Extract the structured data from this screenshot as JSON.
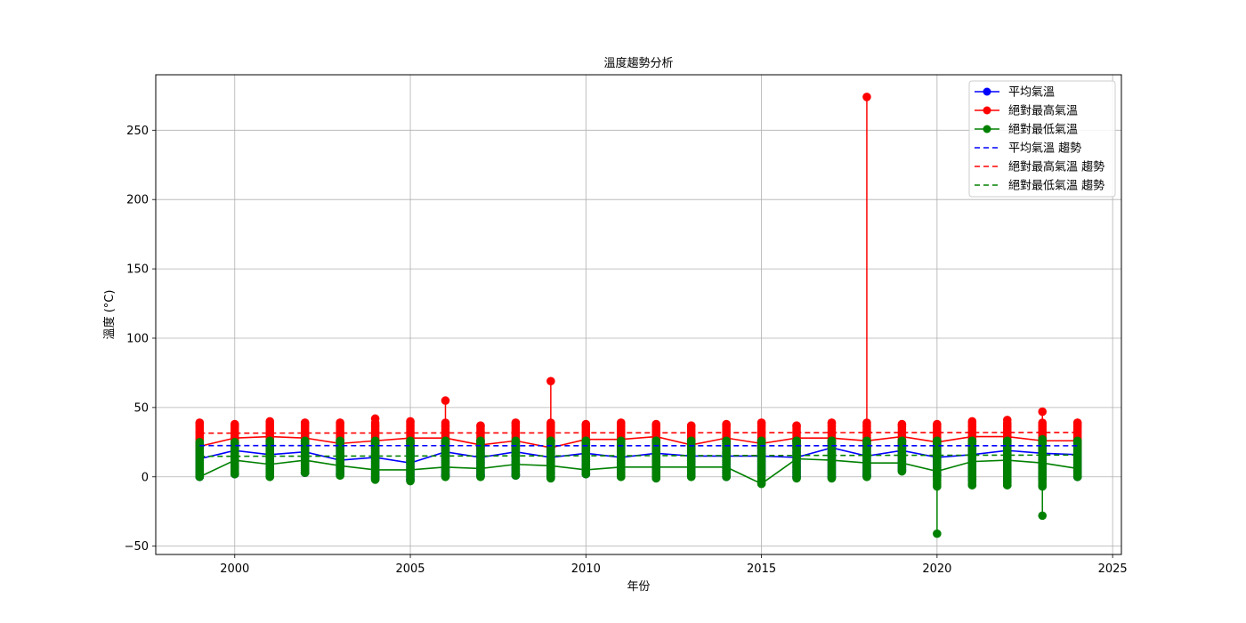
{
  "chart_data": {
    "type": "line",
    "title": "溫度趨勢分析",
    "xlabel": "年份",
    "ylabel": "溫度 (°C)",
    "xlim": [
      1997.75,
      2025.25
    ],
    "ylim": [
      -56,
      290
    ],
    "xticks": [
      2000,
      2005,
      2010,
      2015,
      2020,
      2025
    ],
    "yticks": [
      -50,
      0,
      50,
      100,
      150,
      200,
      250
    ],
    "grid": true,
    "legend_position": "top-right",
    "x": [
      1999,
      2000,
      2001,
      2002,
      2003,
      2004,
      2005,
      2006,
      2007,
      2008,
      2009,
      2010,
      2011,
      2012,
      2013,
      2014,
      2015,
      2016,
      2017,
      2018,
      2019,
      2020,
      2021,
      2022,
      2023,
      2024
    ],
    "series": [
      {
        "name": "平均氣溫",
        "color": "#0000ff",
        "style": "solid",
        "marker": true,
        "values": [
          13,
          19,
          16,
          18,
          12,
          14,
          10,
          18,
          14,
          18,
          14,
          17,
          14,
          17,
          15,
          15,
          15,
          14,
          21,
          15,
          19,
          14,
          16,
          19,
          17,
          16
        ],
        "spread_low": [
          0,
          2,
          1,
          3,
          2,
          -1,
          -2,
          1,
          1,
          1,
          0,
          2,
          1,
          0,
          1,
          0,
          2,
          0,
          0,
          1,
          5,
          1,
          -2,
          -3,
          -1,
          0
        ],
        "spread_high": [
          25,
          25,
          26,
          26,
          26,
          26,
          26,
          26,
          26,
          26,
          26,
          26,
          26,
          26,
          26,
          26,
          26,
          26,
          26,
          26,
          26,
          26,
          26,
          26,
          27,
          26
        ]
      },
      {
        "name": "絕對最高氣溫",
        "color": "#ff0000",
        "style": "solid",
        "marker": true,
        "values": [
          22,
          28,
          29,
          28,
          24,
          26,
          28,
          28,
          23,
          26,
          21,
          27,
          27,
          29,
          23,
          28,
          24,
          28,
          28,
          26,
          29,
          25,
          29,
          29,
          26,
          26
        ],
        "spread_low": [
          21,
          21,
          21,
          21,
          21,
          21,
          21,
          21,
          21,
          21,
          21,
          21,
          21,
          21,
          21,
          21,
          21,
          21,
          21,
          21,
          21,
          21,
          21,
          21,
          21,
          21
        ],
        "spread_high": [
          39,
          38,
          40,
          39,
          39,
          42,
          40,
          55,
          37,
          39,
          69,
          38,
          39,
          38,
          37,
          38,
          39,
          37,
          39,
          274,
          38,
          38,
          40,
          41,
          47,
          39
        ]
      },
      {
        "name": "絕對最低氣溫",
        "color": "#008000",
        "style": "solid",
        "marker": true,
        "values": [
          0,
          12,
          9,
          12,
          8,
          5,
          5,
          7,
          6,
          9,
          8,
          5,
          7,
          7,
          7,
          7,
          -5,
          13,
          12,
          10,
          10,
          4,
          11,
          12,
          10,
          6
        ],
        "spread_low": [
          0,
          2,
          0,
          3,
          1,
          -2,
          -3,
          0,
          0,
          1,
          -1,
          2,
          0,
          -1,
          0,
          0,
          -5,
          -1,
          -1,
          0,
          4,
          -41,
          -6,
          -6,
          -28,
          0
        ],
        "spread_high": [
          25,
          25,
          26,
          26,
          26,
          26,
          26,
          26,
          26,
          26,
          26,
          26,
          26,
          26,
          26,
          26,
          26,
          26,
          26,
          26,
          26,
          26,
          26,
          26,
          27,
          26
        ]
      },
      {
        "name": "平均氣溫 趨勢",
        "color": "#0000ff",
        "style": "dashed",
        "marker": false,
        "x": [
          1999,
          2024
        ],
        "values": [
          22.5,
          22.4
        ]
      },
      {
        "name": "絕對最高氣溫 趨勢",
        "color": "#ff0000",
        "style": "dashed",
        "marker": false,
        "x": [
          1999,
          2024
        ],
        "values": [
          31.5,
          32.0
        ]
      },
      {
        "name": "絕對最低氣溫 趨勢",
        "color": "#008000",
        "style": "dashed",
        "marker": false,
        "x": [
          1999,
          2024
        ],
        "values": [
          14.8,
          15.7
        ]
      }
    ]
  }
}
